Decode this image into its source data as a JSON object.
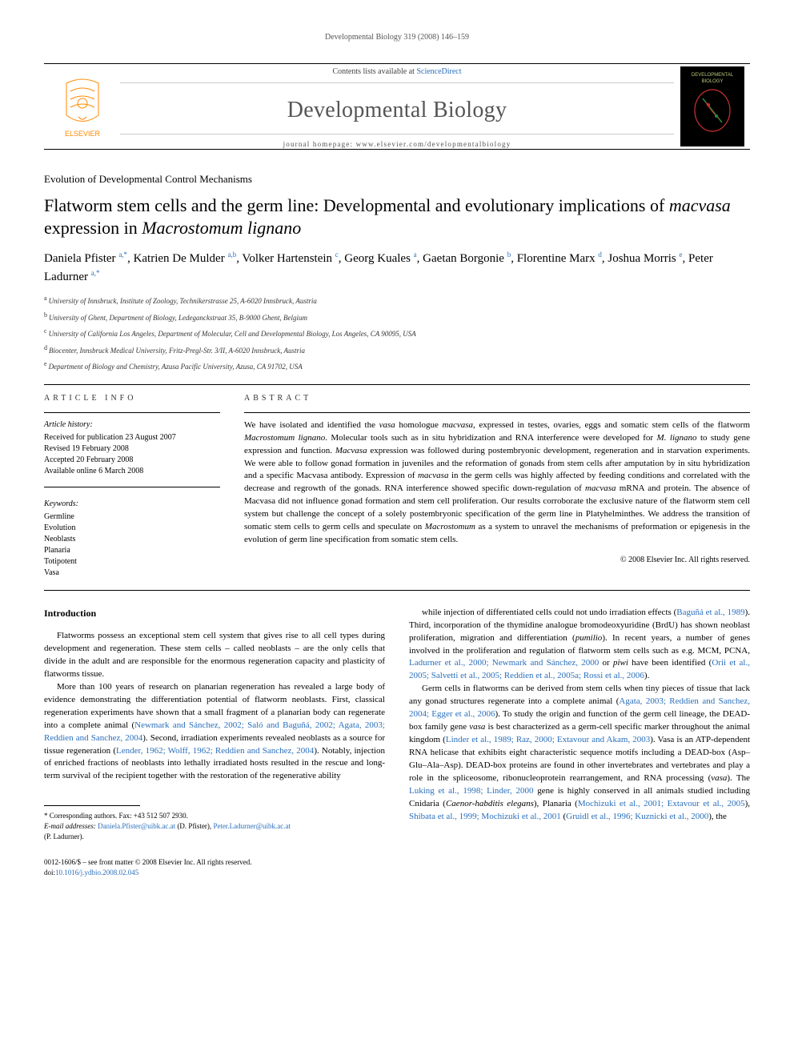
{
  "running_header": "Developmental Biology 319 (2008) 146–159",
  "masthead": {
    "contents_line_pre": "Contents lists available at ",
    "contents_line_link": "ScienceDirect",
    "journal_name": "Developmental Biology",
    "homepage_line": "journal homepage: www.elsevier.com/developmentalbiology",
    "elsevier_logo": {
      "stroke": "#ff8a00",
      "label": "ELSEVIER",
      "label_color": "#ff8a00"
    },
    "journal_thumb": {
      "bg": "#000000",
      "title": "DEVELOPMENTAL BIOLOGY",
      "title_color": "#b8c97a",
      "accent1": "#cc3030",
      "accent2": "#2a8a3a"
    }
  },
  "section_name": "Evolution of Developmental Control Mechanisms",
  "title_parts": [
    {
      "t": "Flatworm stem cells and the germ line: Developmental and evolutionary implications of ",
      "i": false
    },
    {
      "t": "macvasa",
      "i": true
    },
    {
      "t": " expression in ",
      "i": false
    },
    {
      "t": "Macrostomum lignano",
      "i": true
    }
  ],
  "authors_html": "Daniela Pfister <sup>a,*</sup>, Katrien De Mulder <sup>a,b</sup>, Volker Hartenstein <sup>c</sup>, Georg Kuales <sup>a</sup>, Gaetan Borgonie <sup>b</sup>, Florentine Marx <sup>d</sup>, Joshua Morris <sup>e</sup>, Peter Ladurner <sup>a,*</sup>",
  "affiliations": [
    {
      "sup": "a",
      "text": "University of Innsbruck, Institute of Zoology, Technikerstrasse 25, A-6020 Innsbruck, Austria"
    },
    {
      "sup": "b",
      "text": "University of Ghent, Department of Biology, Ledeganckstraat 35, B-9000 Ghent, Belgium"
    },
    {
      "sup": "c",
      "text": "University of California Los Angeles, Department of Molecular, Cell and Developmental Biology, Los Angeles, CA 90095, USA"
    },
    {
      "sup": "d",
      "text": "Biocenter, Innsbruck Medical University, Fritz-Pregl-Str. 3/II, A-6020 Innsbruck, Austria"
    },
    {
      "sup": "e",
      "text": "Department of Biology and Chemistry, Azusa Pacific University, Azusa, CA 91702, USA"
    }
  ],
  "article_info": {
    "heading": "article info",
    "history_heading": "Article history:",
    "history": [
      "Received for publication 23 August 2007",
      "Revised 19 February 2008",
      "Accepted 20 February 2008",
      "Available online 6 March 2008"
    ],
    "keywords_heading": "Keywords:",
    "keywords": [
      "Germline",
      "Evolution",
      "Neoblasts",
      "Planaria",
      "Totipotent",
      "Vasa"
    ]
  },
  "abstract": {
    "heading": "abstract",
    "body_parts": [
      {
        "t": "We have isolated and identified the ",
        "i": false
      },
      {
        "t": "vasa",
        "i": true
      },
      {
        "t": " homologue ",
        "i": false
      },
      {
        "t": "macvasa",
        "i": true
      },
      {
        "t": ", expressed in testes, ovaries, eggs and somatic stem cells of the flatworm ",
        "i": false
      },
      {
        "t": "Macrostomum lignano",
        "i": true
      },
      {
        "t": ". Molecular tools such as in situ hybridization and RNA interference were developed for ",
        "i": false
      },
      {
        "t": "M. lignano",
        "i": true
      },
      {
        "t": " to study gene expression and function. ",
        "i": false
      },
      {
        "t": "Macvasa",
        "i": true
      },
      {
        "t": " expression was followed during postembryonic development, regeneration and in starvation experiments. We were able to follow gonad formation in juveniles and the reformation of gonads from stem cells after amputation by in situ hybridization and a specific Macvasa antibody. Expression of ",
        "i": false
      },
      {
        "t": "macvasa",
        "i": true
      },
      {
        "t": " in the germ cells was highly affected by feeding conditions and correlated with the decrease and regrowth of the gonads. RNA interference showed specific down-regulation of ",
        "i": false
      },
      {
        "t": "macvasa",
        "i": true
      },
      {
        "t": " mRNA and protein. The absence of Macvasa did not influence gonad formation and stem cell proliferation. Our results corroborate the exclusive nature of the flatworm stem cell system but challenge the concept of a solely postembryonic specification of the germ line in Platyhelminthes. We address the transition of somatic stem cells to germ cells and speculate on ",
        "i": false
      },
      {
        "t": "Macrostomum",
        "i": true
      },
      {
        "t": " as a system to unravel the mechanisms of preformation or epigenesis in the evolution of germ line specification from somatic stem cells.",
        "i": false
      }
    ],
    "copyright": "© 2008 Elsevier Inc. All rights reserved."
  },
  "body": {
    "heading": "Introduction",
    "left_parts": [
      {
        "t": "Flatworms possess an exceptional stem cell system that gives rise to all cell types during development and regeneration. These stem cells – called neoblasts – are the only cells that divide in the adult and are responsible for the enormous regeneration capacity and plasticity of flatworms tissue."
      },
      {
        "t": "More than 100 years of research on planarian regeneration has revealed a large body of evidence demonstrating the differentiation potential of flatworm neoblasts. First, classical regeneration experiments have shown that a small fragment of a planarian body can regenerate into a complete animal (",
        "post_ref": "Newmark and Sánchez, 2002; Saló and Baguñá, 2002; Agata, 2003; Reddien and Sanchez, 2004",
        "after": "). Second, irradiation experiments revealed neoblasts as a source for tissue regeneration (",
        "post_ref2": "Lender, 1962; Wolff, 1962; Reddien and Sanchez, 2004",
        "after2": "). Notably, injection of enriched fractions of neoblasts into lethally irradiated hosts resulted in the rescue and long-term survival of the recipient together with the restoration of the regenerative ability"
      }
    ],
    "right_parts": [
      {
        "pre": "while injection of differentiated cells could not undo irradiation effects (",
        "ref": "Baguñá et al., 1989",
        "mid": "). Third, incorporation of the thymidine analogue bromodeoxyuridine (BrdU) has shown neoblast proliferation, migration and differentiation (",
        "ref2": "Ladurner et al., 2000; Newmark and Sánchez, 2000",
        "mid2": "). In recent years, a number of genes involved in the proliferation and regulation of flatworm stem cells such as e.g. MCM, PCNA, ",
        "it1": "pumilio",
        "mid3": " or ",
        "it2": "piwi",
        "mid4": " have been identified (",
        "ref3": "Orii et al., 2005; Salvetti et al., 2005; Reddien et al., 2005a; Rossi et al., 2006",
        "after": ")."
      },
      {
        "pre": "Germ cells in flatworms can be derived from stem cells when tiny pieces of tissue that lack any gonad structures regenerate into a complete animal (",
        "ref": "Agata, 2003; Reddien and Sanchez, 2004; Egger et al., 2006",
        "mid": "). To study the origin and function of the germ cell lineage, the DEAD-box family gene ",
        "it1": "vasa",
        "mid2": " is best characterized as a germ-cell specific marker throughout the animal kingdom (",
        "ref2": "Linder et al., 1989; Raz, 2000; Extavour and Akam, 2003",
        "mid3": "). Vasa is an ATP-dependent RNA helicase that exhibits eight characteristic sequence motifs including a DEAD-box (Asp–Glu–Ala–Asp). DEAD-box proteins are found in other invertebrates and vertebrates and play a role in the spliceosome, ribonucleoprotein rearrangement, and RNA processing (",
        "ref3": "Luking et al., 1998; Linder, 2000",
        "mid4": "). The ",
        "it2": "vasa",
        "mid5": " gene is highly conserved in all animals studied including Cnidaria (",
        "ref4": "Mochizuki et al., 2001; Extavour et al., 2005",
        "mid6": "), Planaria (",
        "ref5": "Shibata et al., 1999; Mochizuki et al., 2001",
        "mid7": "), ",
        "it3": "Caenor-habditis elegans",
        "mid8": " (",
        "ref6": "Gruidl et al., 1996; Kuznicki et al., 2000",
        "after": "), the"
      }
    ]
  },
  "footnotes": {
    "corr": "* Corresponding authors. Fax: +43 512 507 2930.",
    "email_label": "E-mail addresses:",
    "email1": "Daniela.Pfister@uibk.ac.at",
    "email1_name": " (D. Pfister), ",
    "email2": "Peter.Ladurner@uibk.ac.at",
    "email2_name": "(P. Ladurner)."
  },
  "bottom": {
    "left1": "0012-1606/$ – see front matter © 2008 Elsevier Inc. All rights reserved.",
    "doi_label": "doi:",
    "doi": "10.1016/j.ydbio.2008.02.045"
  },
  "colors": {
    "link": "#2a6fbb",
    "text": "#000000",
    "muted": "#555555",
    "rule": "#000000"
  },
  "typography": {
    "body_fontsize_pt": 11,
    "title_fontsize_pt": 22,
    "journal_fontsize_pt": 28,
    "small_fontsize_pt": 9,
    "font_family": "Georgia, 'Times New Roman', serif"
  }
}
